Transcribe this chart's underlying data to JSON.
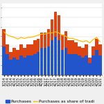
{
  "categories": [
    "1Q14",
    "2Q14",
    "3Q14",
    "4Q14",
    "1Q15",
    "2Q15",
    "3Q15",
    "4Q15",
    "1Q16",
    "2Q16",
    "3Q16",
    "4Q16",
    "1Q17",
    "2Q17",
    "3Q17",
    "4Q17",
    "1Q18",
    "2Q18",
    "3Q18",
    "4Q18",
    "1Q19",
    "2Q19",
    "3Q19",
    "4Q19",
    "1Q20",
    "2Q20",
    "3Q20",
    "4Q20",
    "1Q21"
  ],
  "blue_values": [
    30,
    22,
    16,
    18,
    16,
    20,
    18,
    20,
    20,
    22,
    24,
    28,
    28,
    30,
    36,
    40,
    36,
    26,
    28,
    22,
    22,
    22,
    20,
    18,
    20,
    12,
    20,
    26,
    20
  ],
  "orange_values": [
    18,
    10,
    8,
    10,
    10,
    12,
    10,
    12,
    12,
    14,
    14,
    16,
    16,
    18,
    22,
    26,
    26,
    16,
    18,
    14,
    14,
    12,
    10,
    10,
    12,
    6,
    10,
    12,
    12
  ],
  "line_values": [
    0.78,
    0.72,
    0.7,
    0.68,
    0.65,
    0.68,
    0.66,
    0.68,
    0.68,
    0.7,
    0.72,
    0.74,
    0.74,
    0.76,
    0.76,
    0.78,
    0.76,
    0.72,
    0.7,
    0.66,
    0.66,
    0.64,
    0.62,
    0.6,
    0.62,
    0.58,
    0.64,
    0.68,
    0.6
  ],
  "bar_blue": "#2255cc",
  "bar_orange": "#dd4411",
  "line_color": "#ffbb00",
  "bg_plot": "#ffffff",
  "bg_fig": "#f0f0f0",
  "legend_purchases": "Purchases",
  "legend_share": "Purchases as share of tradi",
  "tick_fontsize": 3.5,
  "legend_fontsize": 4.2
}
